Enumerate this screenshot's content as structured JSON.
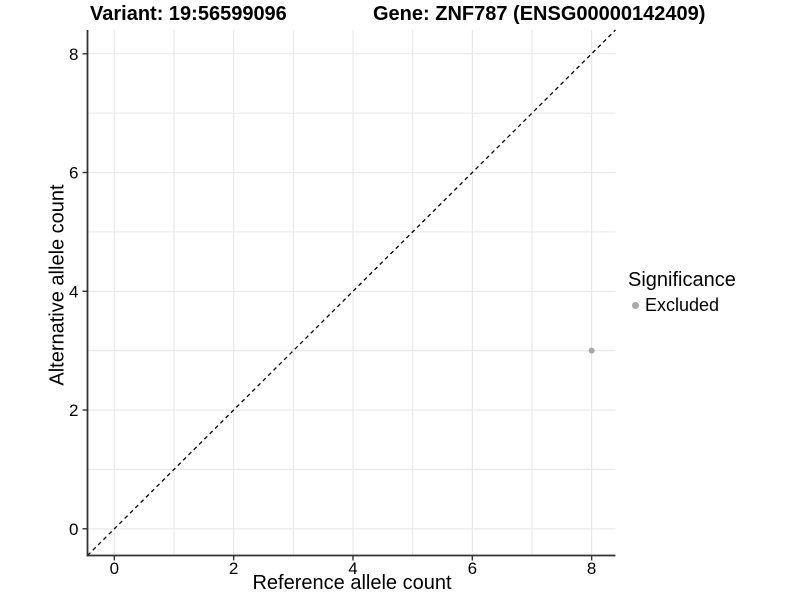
{
  "titles": {
    "variant": "Variant: 19:56599096",
    "gene": "Gene: ZNF787 (ENSG00000142409)"
  },
  "chart_data": {
    "type": "scatter",
    "xlabel": "Reference allele count",
    "ylabel": "Alternative allele count",
    "xlim": [
      -0.45,
      8.4
    ],
    "ylim": [
      -0.45,
      8.4
    ],
    "x_ticks": {
      "values": [
        0,
        2,
        4,
        6,
        8
      ],
      "labels": [
        "0",
        "2",
        "4",
        "6",
        "8"
      ]
    },
    "y_ticks": {
      "values": [
        0,
        2,
        4,
        6,
        8
      ],
      "labels": [
        "0",
        "2",
        "4",
        "6",
        "8"
      ]
    },
    "grid_x": [
      0,
      1,
      2,
      3,
      4,
      5,
      6,
      7,
      8
    ],
    "grid_y": [
      0,
      1,
      2,
      3,
      4,
      5,
      6,
      7,
      8
    ],
    "grid_on": true,
    "identity_line": {
      "type": "y=x",
      "style": "dashed",
      "color": "#000000"
    },
    "series": [
      {
        "name": "Excluded",
        "color": "#a8a8a8",
        "points": [
          {
            "x": 8,
            "y": 3
          }
        ]
      }
    ],
    "legend_position": "right"
  },
  "legend": {
    "title": "Significance",
    "items": [
      {
        "label": "Excluded",
        "color": "#a8a8a8"
      }
    ]
  },
  "colors": {
    "background": "#ffffff",
    "grid": "#e8e8e8",
    "axis": "#333333",
    "text": "#000000"
  }
}
